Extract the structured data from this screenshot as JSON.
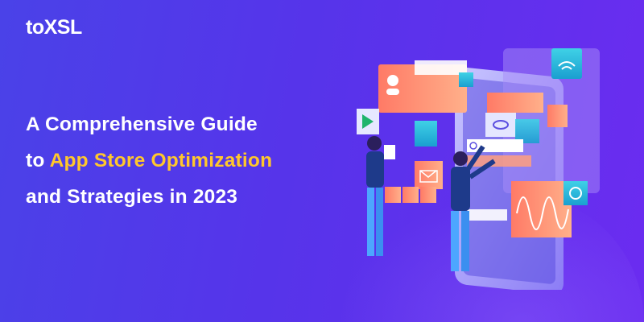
{
  "logo": {
    "text": "toXSL"
  },
  "headline": {
    "line1": "A Comprehensive Guide",
    "line2_prefix": "to ",
    "line2_highlight": "App Store Optimization",
    "line3": "and Strategies in 2023"
  },
  "colors": {
    "background_start": "#4a42e8",
    "background_end": "#6b2cf0",
    "highlight": "#ffc72c",
    "card": "#ff8a6a"
  },
  "illustration": {
    "icons": [
      "user-icon",
      "wifi-icon",
      "play-store-icon",
      "phone-icon",
      "eye-icon",
      "umbrella-icon",
      "mail-icon",
      "search-icon",
      "media-controls-icon",
      "chart-wave-icon",
      "gauge-icon"
    ]
  }
}
